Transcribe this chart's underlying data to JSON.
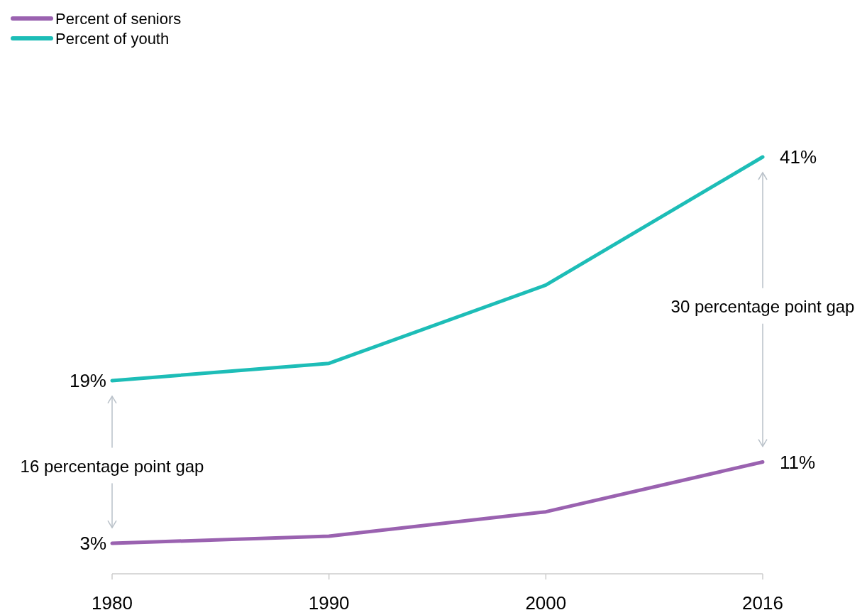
{
  "chart_data": {
    "type": "line",
    "categories": [
      "1980",
      "1990",
      "2000",
      "2016"
    ],
    "series": [
      {
        "name": "Percent of seniors",
        "color": "#9a62b0",
        "values": [
          3,
          3.7,
          6.1,
          11
        ],
        "value_labels": [
          "3%",
          null,
          null,
          "11%"
        ]
      },
      {
        "name": "Percent of youth",
        "color": "#1dbdb7",
        "values": [
          19,
          20.7,
          28.4,
          41
        ],
        "value_labels": [
          "19%",
          null,
          null,
          "41%"
        ]
      }
    ],
    "annotations": [
      "16 percentage point gap",
      "30 percentage point gap"
    ],
    "legend": "top left",
    "tick_labels": "x",
    "marker": "none",
    "line_style": "solid"
  }
}
